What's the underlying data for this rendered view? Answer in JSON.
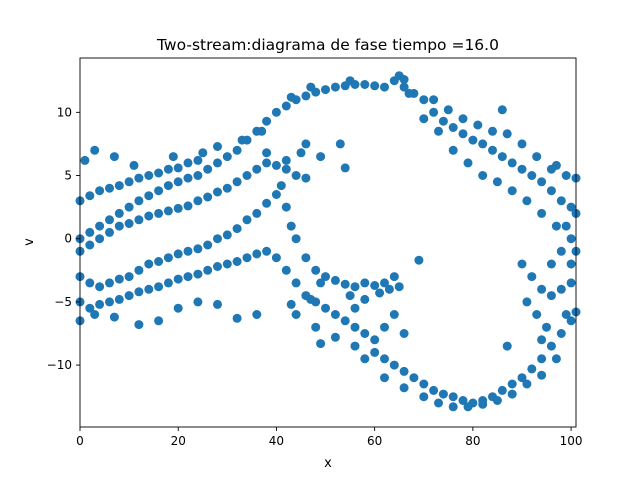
{
  "chart_data": {
    "type": "scatter",
    "title": "Two-stream:diagrama de fase  tiempo =16.0",
    "xlabel": "x",
    "ylabel": "v",
    "xlim": [
      0,
      101
    ],
    "ylim": [
      -14.9,
      14.3
    ],
    "grid": false,
    "marker_color": "#1f77b4",
    "x_ticks": [
      {
        "value": 0,
        "label": "0"
      },
      {
        "value": 20,
        "label": "20"
      },
      {
        "value": 40,
        "label": "40"
      },
      {
        "value": 60,
        "label": "60"
      },
      {
        "value": 80,
        "label": "80"
      },
      {
        "value": 100,
        "label": "100"
      }
    ],
    "y_ticks": [
      {
        "value": -10,
        "label": "−10"
      },
      {
        "value": -5,
        "label": "−5"
      },
      {
        "value": 0,
        "label": "0"
      },
      {
        "value": 5,
        "label": "5"
      },
      {
        "value": 10,
        "label": "10"
      }
    ],
    "series": [
      {
        "points": [
          [
            0,
            0
          ],
          [
            2,
            0.5
          ],
          [
            4,
            1
          ],
          [
            6,
            1.5
          ],
          [
            8,
            2
          ],
          [
            10,
            2.5
          ],
          [
            12,
            3
          ],
          [
            14,
            3.4
          ],
          [
            16,
            3.8
          ],
          [
            18,
            4.2
          ],
          [
            20,
            4.5
          ],
          [
            22,
            4.8
          ],
          [
            24,
            5
          ],
          [
            26,
            5.5
          ],
          [
            28,
            6
          ],
          [
            30,
            6.5
          ],
          [
            32,
            7
          ],
          [
            34,
            7.8
          ],
          [
            36,
            8.5
          ],
          [
            38,
            9.3
          ],
          [
            40,
            10
          ],
          [
            42,
            10.5
          ],
          [
            44,
            11
          ],
          [
            46,
            11.3
          ],
          [
            48,
            11.6
          ],
          [
            50,
            11.8
          ],
          [
            52,
            12
          ],
          [
            54,
            12.1
          ],
          [
            56,
            12.2
          ],
          [
            58,
            12.2
          ],
          [
            60,
            12.1
          ],
          [
            62,
            12
          ],
          [
            64,
            12.5
          ],
          [
            65,
            12.9
          ],
          [
            66,
            12.6
          ],
          [
            0,
            3
          ],
          [
            2,
            3.4
          ],
          [
            4,
            3.8
          ],
          [
            6,
            4
          ],
          [
            8,
            4.2
          ],
          [
            10,
            4.5
          ],
          [
            12,
            4.8
          ],
          [
            14,
            5
          ],
          [
            16,
            5.2
          ],
          [
            18,
            5.5
          ],
          [
            20,
            5.6
          ],
          [
            22,
            6
          ],
          [
            24,
            6.2
          ],
          [
            1,
            6.2
          ],
          [
            3,
            7
          ],
          [
            7,
            6.5
          ],
          [
            11,
            5.8
          ],
          [
            19,
            6.5
          ],
          [
            25,
            6.8
          ],
          [
            28,
            7.3
          ],
          [
            33,
            7.8
          ],
          [
            37,
            8.5
          ],
          [
            43,
            11.2
          ],
          [
            47,
            12
          ],
          [
            55,
            12.5
          ],
          [
            0,
            -1
          ],
          [
            2,
            -0.5
          ],
          [
            4,
            0
          ],
          [
            6,
            0.5
          ],
          [
            8,
            1
          ],
          [
            10,
            1.2
          ],
          [
            12,
            1.5
          ],
          [
            14,
            1.8
          ],
          [
            16,
            2
          ],
          [
            18,
            2.2
          ],
          [
            20,
            2.4
          ],
          [
            22,
            2.6
          ],
          [
            24,
            3
          ],
          [
            26,
            3.3
          ],
          [
            28,
            3.7
          ],
          [
            30,
            4
          ],
          [
            32,
            4.5
          ],
          [
            34,
            5
          ],
          [
            36,
            5.5
          ],
          [
            38,
            6
          ],
          [
            40,
            5.8
          ],
          [
            42,
            5.5
          ],
          [
            44,
            5
          ],
          [
            46,
            4.8
          ],
          [
            0,
            -3
          ],
          [
            2,
            -3.5
          ],
          [
            4,
            -3.8
          ],
          [
            6,
            -3.5
          ],
          [
            8,
            -3.2
          ],
          [
            10,
            -3
          ],
          [
            12,
            -2.5
          ],
          [
            14,
            -2
          ],
          [
            16,
            -1.8
          ],
          [
            18,
            -1.5
          ],
          [
            20,
            -1.2
          ],
          [
            22,
            -1
          ],
          [
            24,
            -0.8
          ],
          [
            26,
            -0.5
          ],
          [
            28,
            0
          ],
          [
            30,
            0.3
          ],
          [
            32,
            0.8
          ],
          [
            34,
            1.5
          ],
          [
            36,
            2
          ],
          [
            38,
            2.8
          ],
          [
            40,
            3.5
          ],
          [
            41,
            4.2
          ],
          [
            42,
            2.5
          ],
          [
            43,
            1
          ],
          [
            44,
            0
          ],
          [
            46,
            -1.5
          ],
          [
            48,
            -2.5
          ],
          [
            50,
            -3
          ],
          [
            52,
            -3.3
          ],
          [
            54,
            -3.6
          ],
          [
            56,
            -3.8
          ],
          [
            58,
            -3.5
          ],
          [
            60,
            -3.7
          ],
          [
            62,
            -3.5
          ],
          [
            64,
            -3
          ],
          [
            0,
            -5
          ],
          [
            2,
            -5.5
          ],
          [
            4,
            -5.2
          ],
          [
            6,
            -5
          ],
          [
            8,
            -4.8
          ],
          [
            10,
            -4.5
          ],
          [
            12,
            -4.2
          ],
          [
            14,
            -4
          ],
          [
            16,
            -3.8
          ],
          [
            18,
            -3.5
          ],
          [
            20,
            -3.2
          ],
          [
            22,
            -3
          ],
          [
            24,
            -2.8
          ],
          [
            26,
            -2.5
          ],
          [
            28,
            -2.2
          ],
          [
            30,
            -2
          ],
          [
            32,
            -1.8
          ],
          [
            34,
            -1.5
          ],
          [
            36,
            -1.2
          ],
          [
            38,
            -1
          ],
          [
            40,
            -1.5
          ],
          [
            42,
            -2.5
          ],
          [
            44,
            -3.5
          ],
          [
            46,
            -4.5
          ],
          [
            48,
            -5
          ],
          [
            50,
            -5.5
          ],
          [
            52,
            -6
          ],
          [
            54,
            -6.5
          ],
          [
            56,
            -7
          ],
          [
            58,
            -7.5
          ],
          [
            60,
            -8
          ],
          [
            62,
            -7
          ],
          [
            64,
            -6
          ],
          [
            66,
            -7.5
          ],
          [
            0,
            -6.5
          ],
          [
            3,
            -6
          ],
          [
            7,
            -6.2
          ],
          [
            12,
            -6.8
          ],
          [
            16,
            -6.5
          ],
          [
            20,
            -5.5
          ],
          [
            24,
            -5
          ],
          [
            28,
            -5.2
          ],
          [
            32,
            -6.3
          ],
          [
            36,
            -6
          ],
          [
            44,
            -6
          ],
          [
            48,
            -7
          ],
          [
            52,
            -7.8
          ],
          [
            56,
            -8.5
          ],
          [
            60,
            -9
          ],
          [
            62,
            -9.5
          ],
          [
            64,
            -10
          ],
          [
            66,
            -10.5
          ],
          [
            68,
            -11
          ],
          [
            70,
            -11.5
          ],
          [
            72,
            -12
          ],
          [
            74,
            -12.3
          ],
          [
            76,
            -12.5
          ],
          [
            78,
            -12.8
          ],
          [
            80,
            -13
          ],
          [
            82,
            -12.8
          ],
          [
            84,
            -12.5
          ],
          [
            86,
            -12
          ],
          [
            88,
            -11.5
          ],
          [
            90,
            -11
          ],
          [
            92,
            -10.3
          ],
          [
            94,
            -9.5
          ],
          [
            96,
            -8.5
          ],
          [
            98,
            -7.5
          ],
          [
            100,
            -6.5
          ],
          [
            101,
            -5.8
          ],
          [
            49,
            -8.3
          ],
          [
            58,
            -9.5
          ],
          [
            62,
            -11
          ],
          [
            66,
            -11.8
          ],
          [
            70,
            -12.5
          ],
          [
            73,
            -13
          ],
          [
            76,
            -13.3
          ],
          [
            79,
            -13.3
          ],
          [
            82,
            -13.1
          ],
          [
            85,
            -12.8
          ],
          [
            88,
            -12.3
          ],
          [
            91,
            -11.5
          ],
          [
            94,
            -10.8
          ],
          [
            97,
            -9.5
          ],
          [
            66,
            12
          ],
          [
            68,
            11.5
          ],
          [
            70,
            11
          ],
          [
            72,
            10
          ],
          [
            74,
            9.3
          ],
          [
            76,
            8.8
          ],
          [
            78,
            8.3
          ],
          [
            80,
            7.8
          ],
          [
            82,
            7.5
          ],
          [
            84,
            7
          ],
          [
            86,
            6.5
          ],
          [
            88,
            6
          ],
          [
            90,
            5.5
          ],
          [
            92,
            5
          ],
          [
            94,
            4.5
          ],
          [
            96,
            3.8
          ],
          [
            98,
            3
          ],
          [
            100,
            2.5
          ],
          [
            67,
            11.5
          ],
          [
            70,
            9.5
          ],
          [
            73,
            8.5
          ],
          [
            76,
            7
          ],
          [
            79,
            6
          ],
          [
            82,
            5
          ],
          [
            85,
            4.5
          ],
          [
            88,
            3.8
          ],
          [
            91,
            3
          ],
          [
            94,
            2
          ],
          [
            97,
            1
          ],
          [
            100,
            0
          ],
          [
            72,
            11
          ],
          [
            75,
            10.2
          ],
          [
            78,
            9.5
          ],
          [
            81,
            9
          ],
          [
            84,
            8.5
          ],
          [
            87,
            8.3
          ],
          [
            90,
            7.5
          ],
          [
            93,
            6.5
          ],
          [
            96,
            5.5
          ],
          [
            99,
            5
          ],
          [
            101,
            4.8
          ],
          [
            86,
            10.2
          ],
          [
            97,
            5.8
          ],
          [
            90,
            -2
          ],
          [
            92,
            -3
          ],
          [
            94,
            -4
          ],
          [
            96,
            -4.5
          ],
          [
            98,
            -4
          ],
          [
            100,
            -3.5
          ],
          [
            91,
            -5
          ],
          [
            93,
            -6
          ],
          [
            95,
            -7
          ],
          [
            99,
            -6
          ],
          [
            87,
            -8.5
          ],
          [
            94,
            -8
          ],
          [
            100,
            -2
          ],
          [
            101,
            -1
          ],
          [
            99,
            1
          ],
          [
            101,
            2
          ],
          [
            98,
            -1
          ],
          [
            96,
            -2
          ],
          [
            49,
            6.5
          ],
          [
            46,
            7.5
          ],
          [
            42,
            6.2
          ],
          [
            45,
            6.8
          ],
          [
            38,
            6.8
          ],
          [
            53,
            7.5
          ],
          [
            54,
            5.6
          ],
          [
            49,
            -3.5
          ],
          [
            55,
            -4.5
          ],
          [
            58,
            -4.8
          ],
          [
            61,
            -4.3
          ],
          [
            63,
            -4
          ],
          [
            65,
            -3.8
          ],
          [
            69,
            -1.7
          ],
          [
            56,
            -5.5
          ],
          [
            43,
            -5.2
          ],
          [
            47,
            -4.8
          ]
        ]
      }
    ]
  }
}
